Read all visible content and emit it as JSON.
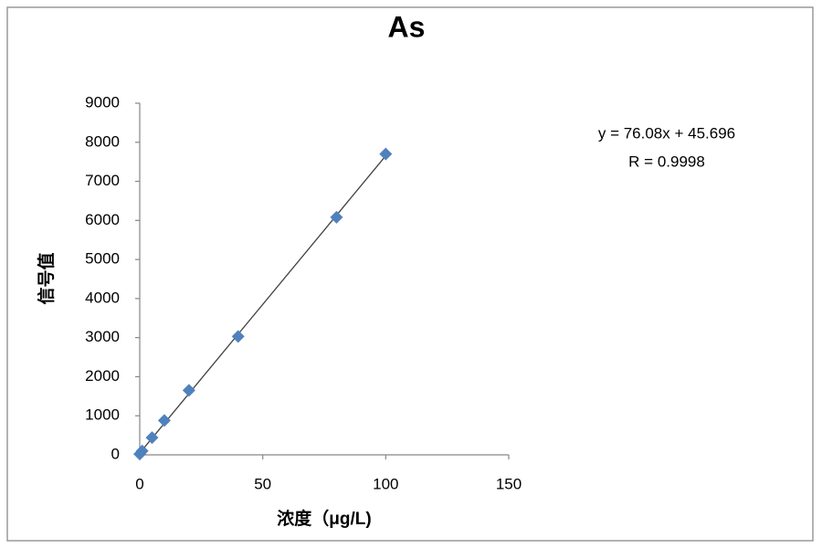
{
  "chart_data": {
    "type": "scatter",
    "title": "As",
    "x_label": "浓度（μg/L)",
    "y_label": "信号值",
    "series": [
      {
        "name": "As",
        "color": "#4f81bd",
        "x": [
          0,
          1,
          5,
          10,
          20,
          40,
          80,
          100
        ],
        "values": [
          20,
          100,
          440,
          880,
          1650,
          3030,
          6080,
          7700
        ]
      }
    ],
    "trendline": {
      "slope": 76.08,
      "intercept": 45.696,
      "color": "#404040"
    },
    "annotations": [
      "y = 76.08x + 45.696",
      "R = 0.9998"
    ],
    "xlim": [
      0,
      150
    ],
    "xticks": [
      0,
      50,
      100,
      150
    ],
    "ylim": [
      0,
      9000
    ],
    "yticks": [
      0,
      1000,
      2000,
      3000,
      4000,
      5000,
      6000,
      7000,
      8000,
      9000
    ],
    "grid": false
  }
}
